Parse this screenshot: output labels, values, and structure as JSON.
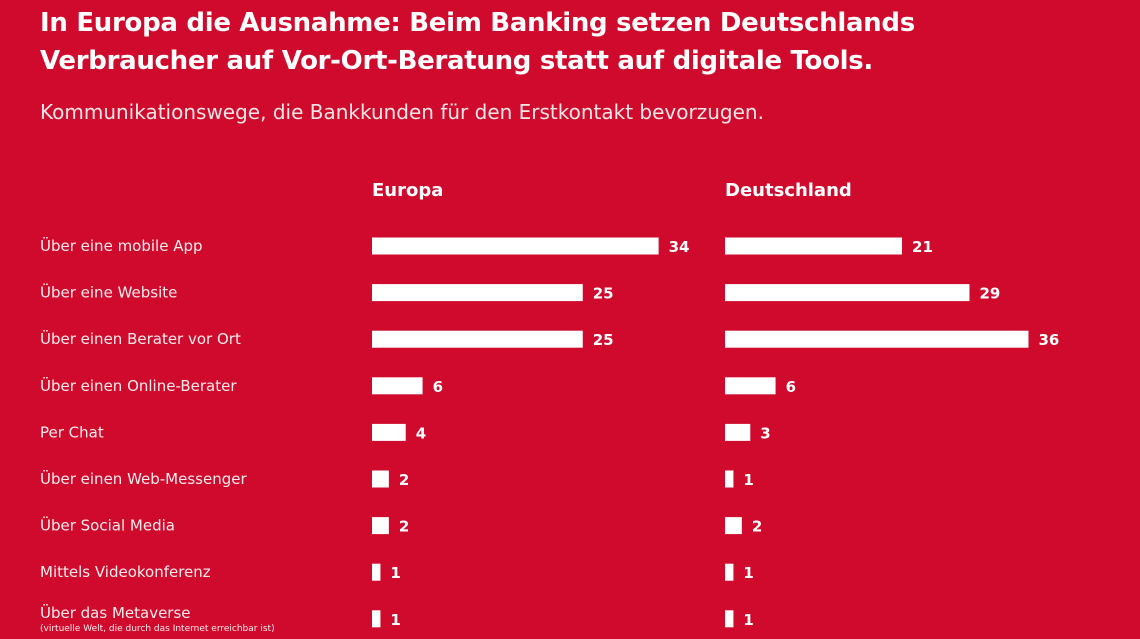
{
  "chart_data": {
    "type": "bar",
    "orientation": "horizontal",
    "title": "In Europa die Ausnahme: Beim Banking setzen Deutschlands Verbraucher auf Vor-Ort-Beratung statt auf digitale Tools.",
    "title_lines": [
      "In Europa die Ausnahme: Beim Banking setzen Deutschlands",
      "Verbraucher auf Vor-Ort-Beratung statt auf digitale Tools."
    ],
    "subtitle": "Kommunikationswege, die Bankkunden für den Erstkontakt bevorzugen.",
    "categories": [
      "Über eine mobile App",
      "Über eine Website",
      "Über einen Berater vor Ort",
      "Über einen Online-Berater",
      "Per Chat",
      "Über einen Web-Messenger",
      "Über Social Media",
      "Mittels Videokonferenz",
      "Über das Metaverse"
    ],
    "category_notes": {
      "8": "(virtuelle Welt, die durch das Internet erreichbar ist)"
    },
    "series": [
      {
        "name": "Europa",
        "values": [
          34,
          25,
          25,
          6,
          4,
          2,
          2,
          1,
          1
        ]
      },
      {
        "name": "Deutschland",
        "values": [
          21,
          29,
          36,
          6,
          3,
          1,
          2,
          1,
          1
        ]
      }
    ],
    "xlim": [
      0,
      36
    ],
    "grid": false,
    "data_labels": true,
    "colors": {
      "background": "#cf0a2c",
      "bar": "#ffffff",
      "text": "#ffffff"
    }
  }
}
